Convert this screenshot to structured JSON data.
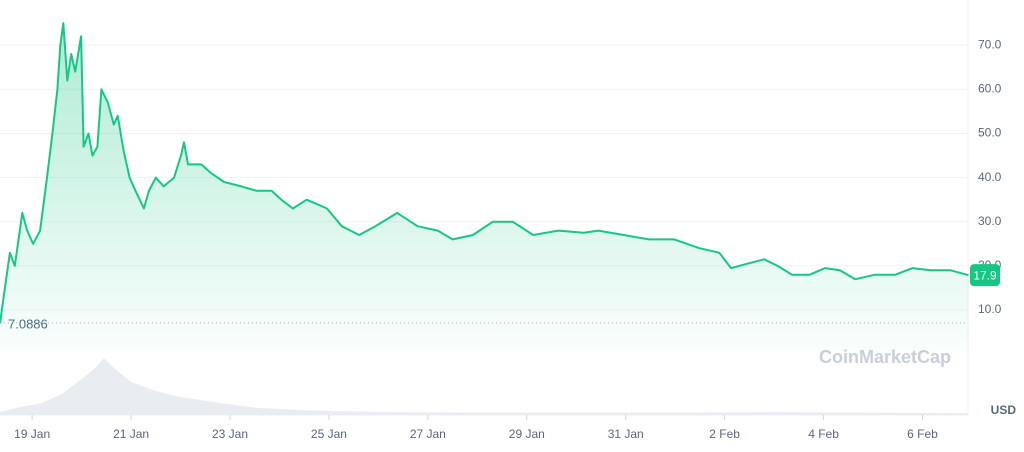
{
  "chart_data": {
    "type": "line",
    "x": [
      -0.65,
      -0.55,
      -0.45,
      -0.35,
      -0.2,
      -0.1,
      0.02,
      0.16,
      0.3,
      0.41,
      0.51,
      0.57,
      0.63,
      0.71,
      0.79,
      0.87,
      0.99,
      1.04,
      1.14,
      1.22,
      1.32,
      1.4,
      1.53,
      1.65,
      1.73,
      1.85,
      1.97,
      2.09,
      2.26,
      2.36,
      2.5,
      2.66,
      2.87,
      3.01,
      3.07,
      3.15,
      3.42,
      3.62,
      3.88,
      4.23,
      4.54,
      4.84,
      5.04,
      5.27,
      5.55,
      5.96,
      6.26,
      6.61,
      6.94,
      7.38,
      7.79,
      8.2,
      8.5,
      8.91,
      9.31,
      9.72,
      10.13,
      10.64,
      11.15,
      11.45,
      11.96,
      12.47,
      12.98,
      13.49,
      13.89,
      14.13,
      14.46,
      14.8,
      15.07,
      15.36,
      15.72,
      16.03,
      16.33,
      16.64,
      17.04,
      17.45,
      17.8,
      18.16,
      18.57,
      18.93
    ],
    "series": [
      {
        "color": "#16c784",
        "values": [
          7,
          15,
          23,
          20,
          32,
          28,
          25,
          28,
          40,
          50,
          60,
          70,
          75,
          62,
          68,
          64,
          72,
          47,
          50,
          45,
          47,
          60,
          57,
          52,
          54,
          46,
          40,
          37,
          33,
          37,
          40,
          38,
          40,
          45,
          48,
          43,
          43,
          41,
          39,
          38,
          37,
          37,
          35,
          33,
          35,
          33,
          29,
          27,
          29,
          32,
          29,
          28,
          26,
          27,
          30,
          30,
          27,
          28,
          27.5,
          28,
          27,
          26,
          26,
          24,
          23,
          19.5,
          20.5,
          21.5,
          20,
          18,
          18,
          19.5,
          19,
          17,
          18,
          18,
          19.5,
          19,
          19,
          17.9
        ]
      }
    ],
    "current_value": 17.9,
    "baseline": 7.0886,
    "currency": "USD",
    "watermark": "CoinMarketCap",
    "xlim": [
      -0.65,
      18.92
    ],
    "xticks": [
      {
        "value": 0,
        "label": "19 Jan"
      },
      {
        "value": 2,
        "label": "21 Jan"
      },
      {
        "value": 4,
        "label": "23 Jan"
      },
      {
        "value": 6,
        "label": "25 Jan"
      },
      {
        "value": 8,
        "label": "27 Jan"
      },
      {
        "value": 10,
        "label": "29 Jan"
      },
      {
        "value": 12,
        "label": "31 Jan"
      },
      {
        "value": 14,
        "label": "2 Feb"
      },
      {
        "value": 16,
        "label": "4 Feb"
      },
      {
        "value": 18,
        "label": "6 Feb"
      }
    ],
    "ylim": [
      0.5,
      80
    ],
    "yticks": [
      {
        "value": 10,
        "label": "10.0"
      },
      {
        "value": 20,
        "label": "20.0"
      },
      {
        "value": 30,
        "label": "30.0"
      },
      {
        "value": 40,
        "label": "40.0"
      },
      {
        "value": 50,
        "label": "50.0"
      },
      {
        "value": 60,
        "label": "60.0"
      },
      {
        "value": 70,
        "label": "70.0"
      }
    ],
    "grid": true,
    "volume": {
      "x": [
        -0.65,
        -0.3,
        0.2,
        0.6,
        1.0,
        1.3,
        1.45,
        1.7,
        2.0,
        2.5,
        3.0,
        3.8,
        4.5,
        5.5,
        7,
        9,
        11,
        13,
        15,
        16.5,
        18.92
      ],
      "values": [
        5,
        12,
        20,
        35,
        60,
        80,
        95,
        75,
        55,
        40,
        30,
        20,
        12,
        8,
        5,
        4,
        4,
        4,
        5,
        4,
        3
      ],
      "ylim": [
        0,
        100
      ]
    }
  }
}
